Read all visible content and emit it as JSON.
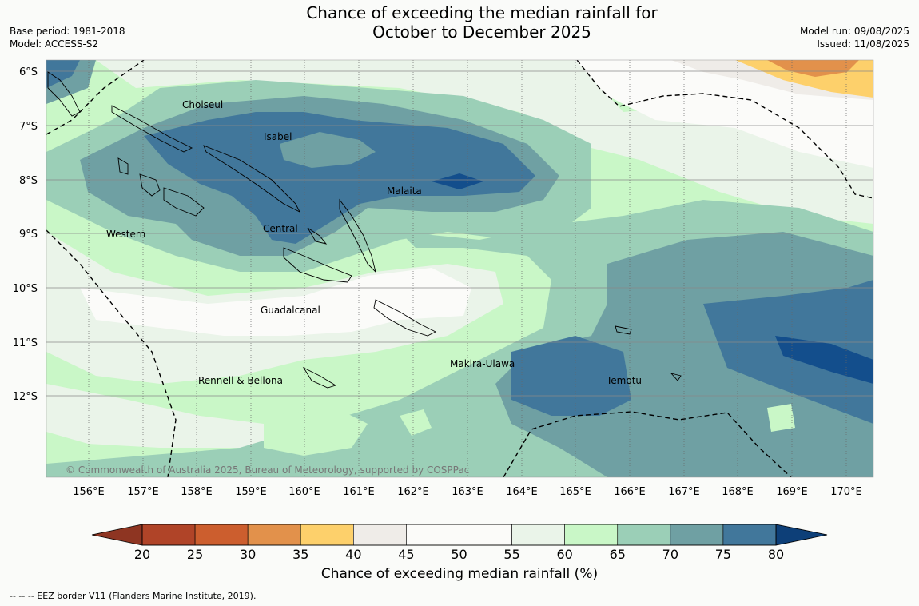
{
  "title": {
    "line1": "Chance of exceeding the median rainfall for",
    "line2": "October to December 2025"
  },
  "meta_left": {
    "base_period": "Base period: 1981-2018",
    "model": "Model: ACCESS-S2"
  },
  "meta_right": {
    "model_run": "Model run: 09/08/2025",
    "issued": "Issued: 11/08/2025"
  },
  "map": {
    "lat_labels": [
      "6°S",
      "7°S",
      "8°S",
      "9°S",
      "10°S",
      "11°S",
      "12°S"
    ],
    "lon_labels": [
      "156°E",
      "157°E",
      "158°E",
      "159°E",
      "160°E",
      "161°E",
      "162°E",
      "163°E",
      "164°E",
      "165°E",
      "166°E",
      "167°E",
      "168°E",
      "169°E",
      "170°E"
    ],
    "regions": [
      "Choiseul",
      "Isabel",
      "Malaita",
      "Western",
      "Central",
      "Guadalcanal",
      "Makira-Ulawa",
      "Temotu",
      "Rennell & Bellona"
    ],
    "copyright": "© Commonwealth of Australia 2025, Bureau of Meteorology, supported by COSPPac"
  },
  "colorbar": {
    "ticks": [
      "20",
      "25",
      "30",
      "35",
      "40",
      "45",
      "50",
      "55",
      "60",
      "65",
      "70",
      "75",
      "80"
    ],
    "colors": [
      "#b04428",
      "#cc5e2e",
      "#e2914b",
      "#fdd06b",
      "#efece8",
      "#fbfbf9",
      "#fbfbf9",
      "#eaf4e9",
      "#c9f7c7",
      "#9bcfb7",
      "#6fa0a3",
      "#41779b",
      "#134e8c"
    ],
    "label": "Chance of exceeding median rainfall (%)"
  },
  "footnote": "--  --  -- EEZ border V11 (Flanders Marine Institute, 2019)."
}
